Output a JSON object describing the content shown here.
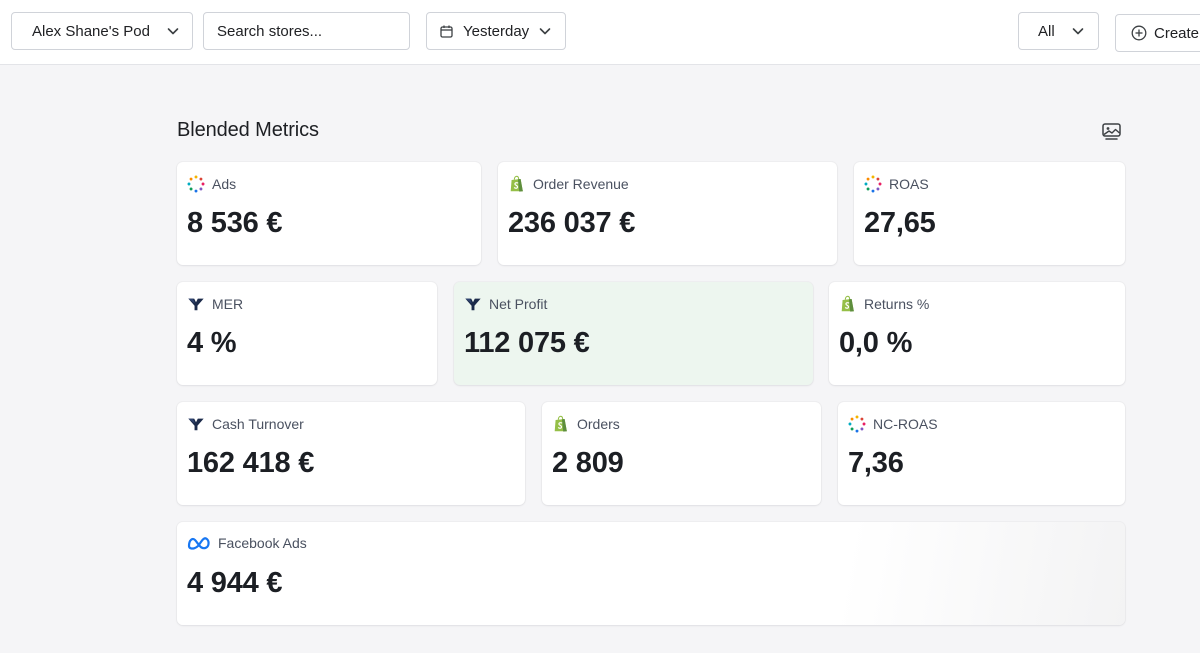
{
  "toolbar": {
    "pod_selector": "Alex Shane's Pod",
    "search_placeholder": "Search stores...",
    "date_range": "Yesterday",
    "filter": "All",
    "create_label": "Create"
  },
  "section": {
    "title": "Blended Metrics"
  },
  "metrics": [
    {
      "label": "Ads",
      "value": "8 536 €",
      "icon": "dots-multicolor-icon"
    },
    {
      "label": "Order Revenue",
      "value": "236 037 €",
      "icon": "shopify-icon"
    },
    {
      "label": "ROAS",
      "value": "27,65",
      "icon": "dots-multicolor-icon"
    },
    {
      "label": "MER",
      "value": "4 %",
      "icon": "triple-whale-icon"
    },
    {
      "label": "Net Profit",
      "value": "112 075 €",
      "icon": "triple-whale-icon"
    },
    {
      "label": "Returns %",
      "value": "0,0 %",
      "icon": "shopify-icon"
    },
    {
      "label": "Cash Turnover",
      "value": "162 418 €",
      "icon": "triple-whale-icon"
    },
    {
      "label": "Orders",
      "value": "2 809",
      "icon": "shopify-icon"
    },
    {
      "label": "NC-ROAS",
      "value": "7,36",
      "icon": "dots-multicolor-icon"
    },
    {
      "label": "Facebook Ads",
      "value": "4 944 €",
      "icon": "meta-icon"
    }
  ],
  "colors": {
    "highlight_card": "#edf6ef",
    "shopify_green": "#95bf47",
    "triple_whale_navy": "#1b2a4a",
    "meta_blue": "#1877f2"
  }
}
